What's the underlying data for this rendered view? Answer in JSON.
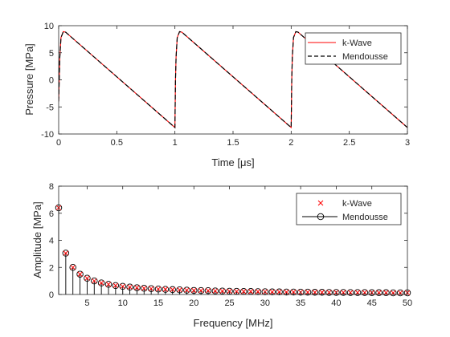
{
  "chart_data": [
    {
      "type": "line",
      "xlabel": "Time [μs]",
      "ylabel": "Pressure [MPa]",
      "xlim": [
        0,
        3
      ],
      "ylim": [
        -10,
        10
      ],
      "xticks": [
        "0",
        "0.5",
        "1",
        "1.5",
        "2",
        "2.5",
        "3"
      ],
      "yticks": [
        "-10",
        "-5",
        "0",
        "5",
        "10"
      ],
      "grid": false,
      "legend_position": "top-right",
      "series": [
        {
          "name": "k-Wave",
          "color": "#ff0000",
          "style": "solid",
          "x": [
            0,
            0.005,
            0.01,
            0.02,
            0.04,
            0.06,
            1.0,
            1.005,
            1.01,
            1.02,
            1.04,
            1.06,
            2.0,
            2.005,
            2.01,
            2.02,
            2.04,
            2.06,
            3.0
          ],
          "y": [
            -4.0,
            0.0,
            4.2,
            7.8,
            8.9,
            8.8,
            -8.8,
            0.0,
            4.2,
            7.8,
            8.9,
            8.8,
            -8.8,
            0.0,
            4.2,
            7.8,
            8.9,
            8.8,
            -8.8
          ]
        },
        {
          "name": "Mendousse",
          "color": "#000000",
          "style": "dashed",
          "x": [
            0,
            0.005,
            0.01,
            0.02,
            0.04,
            0.06,
            1.0,
            1.005,
            1.01,
            1.02,
            1.04,
            1.06,
            2.0,
            2.005,
            2.01,
            2.02,
            2.04,
            2.06,
            3.0
          ],
          "y": [
            -4.0,
            0.0,
            4.2,
            7.8,
            8.9,
            8.8,
            -8.8,
            0.0,
            4.2,
            7.8,
            8.9,
            8.8,
            -8.8,
            0.0,
            4.2,
            7.8,
            8.9,
            8.8,
            -8.8
          ]
        }
      ]
    },
    {
      "type": "scatter",
      "xlabel": "Frequency [MHz]",
      "ylabel": "Amplitude [MPa]",
      "xlim": [
        1,
        50
      ],
      "ylim": [
        0,
        8
      ],
      "xticks": [
        "5",
        "10",
        "15",
        "20",
        "25",
        "30",
        "35",
        "40",
        "45",
        "50"
      ],
      "yticks": [
        "0",
        "2",
        "4",
        "6",
        "8"
      ],
      "grid": false,
      "legend_position": "top-right",
      "x": [
        1,
        2,
        3,
        4,
        5,
        6,
        7,
        8,
        9,
        10,
        11,
        12,
        13,
        14,
        15,
        16,
        17,
        18,
        19,
        20,
        21,
        22,
        23,
        24,
        25,
        26,
        27,
        28,
        29,
        30,
        31,
        32,
        33,
        34,
        35,
        36,
        37,
        38,
        39,
        40,
        41,
        42,
        43,
        44,
        45,
        46,
        47,
        48,
        49,
        50
      ],
      "series": [
        {
          "name": "k-Wave",
          "color": "#ff0000",
          "marker": "x",
          "values": [
            6.4,
            3.05,
            2.0,
            1.5,
            1.2,
            1.0,
            0.85,
            0.75,
            0.66,
            0.6,
            0.55,
            0.5,
            0.46,
            0.43,
            0.4,
            0.38,
            0.36,
            0.34,
            0.32,
            0.3,
            0.29,
            0.28,
            0.26,
            0.25,
            0.24,
            0.23,
            0.22,
            0.22,
            0.21,
            0.2,
            0.19,
            0.19,
            0.18,
            0.18,
            0.17,
            0.17,
            0.16,
            0.16,
            0.15,
            0.15,
            0.15,
            0.14,
            0.14,
            0.14,
            0.13,
            0.13,
            0.13,
            0.12,
            0.12,
            0.12
          ]
        },
        {
          "name": "Mendousse",
          "color": "#000000",
          "marker": "o-stem",
          "values": [
            6.4,
            3.05,
            2.0,
            1.5,
            1.2,
            1.0,
            0.85,
            0.75,
            0.66,
            0.6,
            0.55,
            0.5,
            0.46,
            0.43,
            0.4,
            0.38,
            0.36,
            0.34,
            0.32,
            0.3,
            0.29,
            0.28,
            0.26,
            0.25,
            0.24,
            0.23,
            0.22,
            0.22,
            0.21,
            0.2,
            0.19,
            0.19,
            0.18,
            0.18,
            0.17,
            0.17,
            0.16,
            0.16,
            0.15,
            0.15,
            0.15,
            0.14,
            0.14,
            0.14,
            0.13,
            0.13,
            0.13,
            0.12,
            0.12,
            0.12
          ]
        }
      ]
    }
  ]
}
